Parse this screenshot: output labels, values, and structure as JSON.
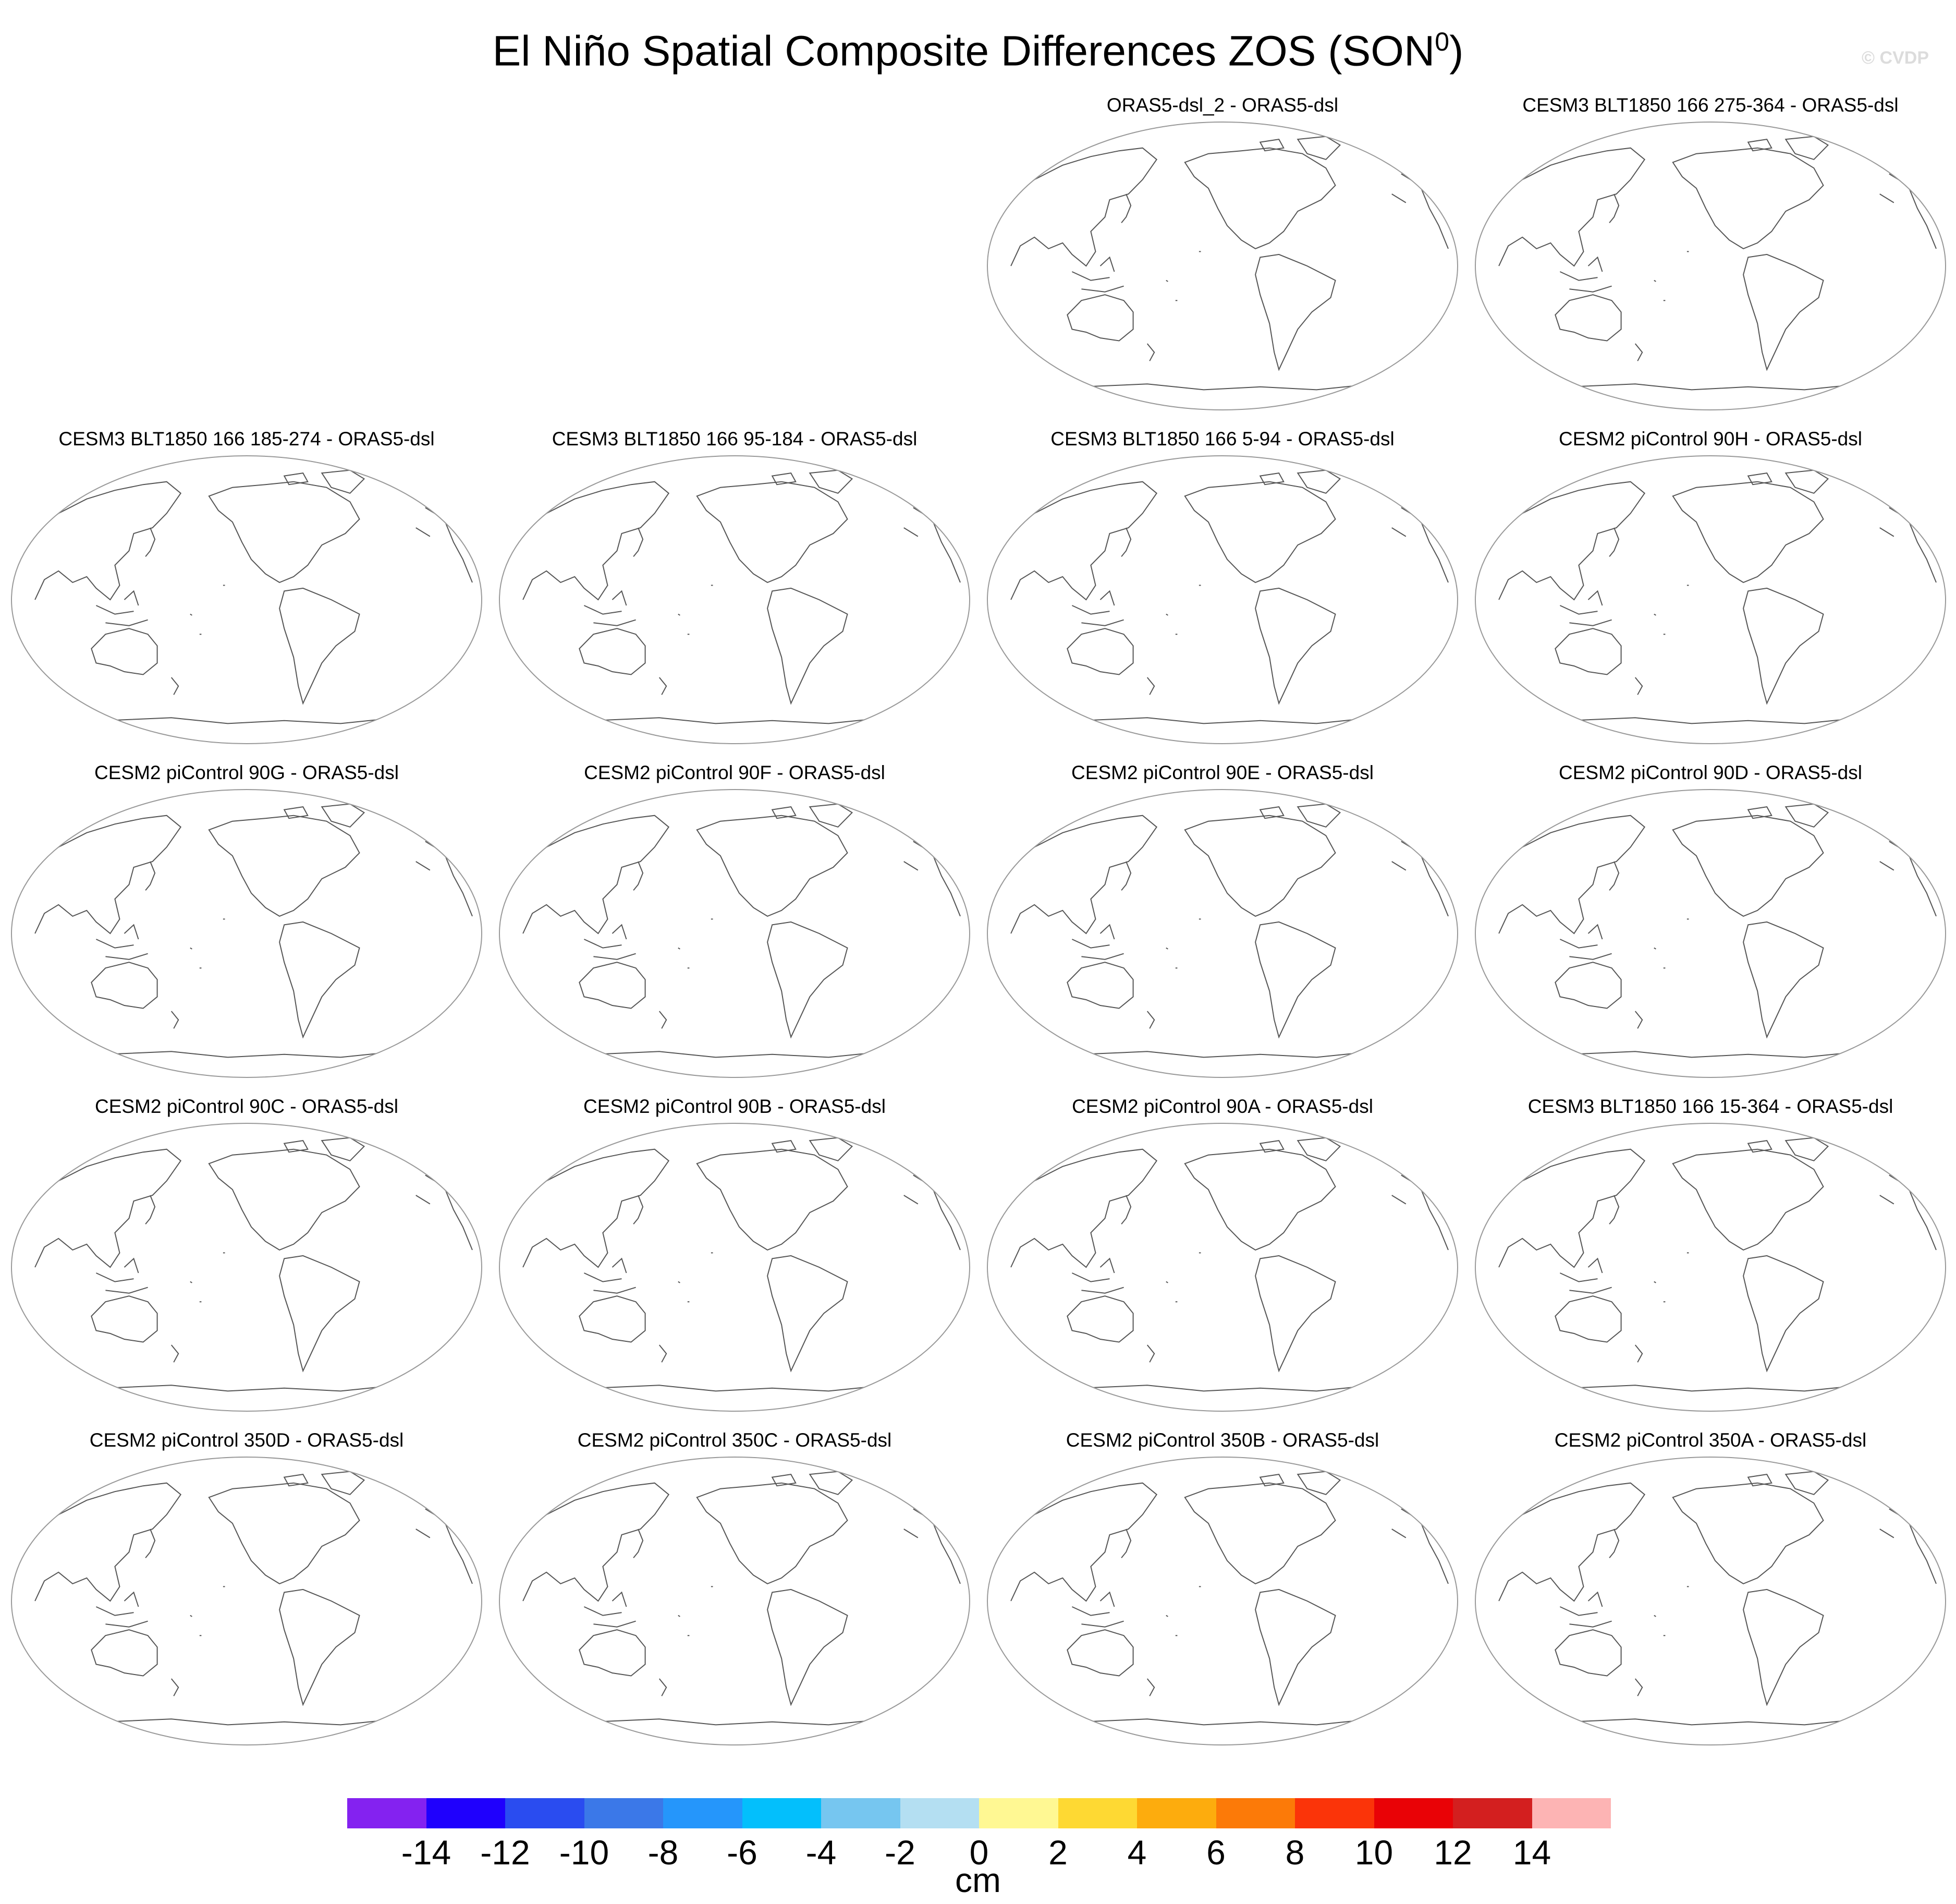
{
  "title": "El Niño Spatial Composite Differences ZOS (SON",
  "title_sup": "0",
  "title_close": ")",
  "watermark": "© CVDP",
  "panels": [
    "ORAS5-dsl_2 - ORAS5-dsl",
    "CESM3 BLT1850 166 275-364 - ORAS5-dsl",
    "CESM3 BLT1850 166 185-274 - ORAS5-dsl",
    "CESM3 BLT1850 166 95-184 - ORAS5-dsl",
    "CESM3 BLT1850 166 5-94 - ORAS5-dsl",
    "CESM2 piControl 90H - ORAS5-dsl",
    "CESM2 piControl 90G - ORAS5-dsl",
    "CESM2 piControl 90F - ORAS5-dsl",
    "CESM2 piControl 90E - ORAS5-dsl",
    "CESM2 piControl 90D - ORAS5-dsl",
    "CESM2 piControl 90C - ORAS5-dsl",
    "CESM2 piControl 90B - ORAS5-dsl",
    "CESM2 piControl 90A - ORAS5-dsl",
    "CESM3 BLT1850 166 15-364 - ORAS5-dsl",
    "CESM2 piControl 350D - ORAS5-dsl",
    "CESM2 piControl 350C - ORAS5-dsl",
    "CESM2 piControl 350B - ORAS5-dsl",
    "CESM2 piControl 350A - ORAS5-dsl"
  ],
  "colorbar": {
    "colors": [
      "#8422f0",
      "#1f00fd",
      "#2a4cf0",
      "#3b78e8",
      "#2596fb",
      "#03bffc",
      "#76c6f0",
      "#b4dff2",
      "#fff893",
      "#fed933",
      "#fdac0d",
      "#fc7a08",
      "#fb3409",
      "#e90206",
      "#d31f1f",
      "#fdb4b4"
    ],
    "labels": [
      "-14",
      "-12",
      "-10",
      "-8",
      "-6",
      "-4",
      "-2",
      "0",
      "2",
      "4",
      "6",
      "8",
      "10",
      "12",
      "14"
    ],
    "units": "cm"
  },
  "map_style": {
    "coast_color": "#555555",
    "frame_color": "#999999"
  }
}
